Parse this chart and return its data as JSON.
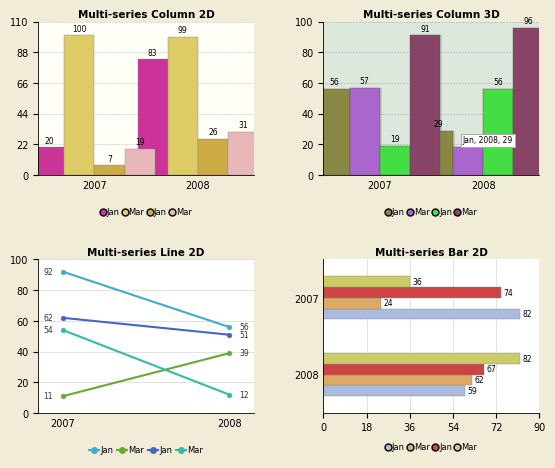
{
  "chart1": {
    "title": "Multi-series Column 2D",
    "groups": [
      "2007",
      "2008"
    ],
    "series": [
      {
        "label": "Jan",
        "color": "#cc3399",
        "values": [
          20,
          83
        ]
      },
      {
        "label": "Mar",
        "color": "#ddcc66",
        "values": [
          100,
          99
        ]
      },
      {
        "label": "Jan",
        "color": "#ccaa44",
        "values": [
          7,
          26
        ]
      },
      {
        "label": "Mar",
        "color": "#e8b8b8",
        "values": [
          19,
          31
        ]
      }
    ],
    "ylim": [
      0,
      110
    ],
    "yticks": [
      0,
      22,
      44,
      66,
      88,
      110
    ],
    "bg": "#fffff8"
  },
  "chart2": {
    "title": "Multi-series Column 3D",
    "groups": [
      "2007",
      "2008"
    ],
    "series": [
      {
        "label": "Jan",
        "color": "#888844",
        "values": [
          56,
          29
        ]
      },
      {
        "label": "Mar",
        "color": "#aa66cc",
        "values": [
          57,
          18
        ]
      },
      {
        "label": "Jan",
        "color": "#44dd44",
        "values": [
          19,
          56
        ]
      },
      {
        "label": "Mar",
        "color": "#884466",
        "values": [
          91,
          96
        ]
      }
    ],
    "ylim": [
      0,
      100
    ],
    "yticks": [
      0,
      20,
      40,
      60,
      80,
      100
    ],
    "tooltip": "Jan, 2008, 29",
    "bg": "#dde8dd"
  },
  "chart3": {
    "title": "Multi-series Line 2D",
    "xlabels": [
      "2007",
      "2008"
    ],
    "series": [
      {
        "label": "Jan",
        "color": "#44aacc",
        "values": [
          92,
          56
        ],
        "marker": "o"
      },
      {
        "label": "Mar",
        "color": "#66aa33",
        "values": [
          11,
          39
        ],
        "marker": "o"
      },
      {
        "label": "Jan",
        "color": "#4466cc",
        "values": [
          62,
          51
        ],
        "marker": "o"
      },
      {
        "label": "Mar",
        "color": "#33bbaa",
        "values": [
          54,
          12
        ],
        "marker": "o"
      }
    ],
    "ylim": [
      0,
      100
    ],
    "yticks": [
      0,
      20,
      40,
      60,
      80,
      100
    ],
    "bg": "#ffffff"
  },
  "chart4": {
    "title": "Multi-series Bar 2D",
    "groups": [
      "2007",
      "2008"
    ],
    "series": [
      {
        "label": "Jan",
        "color": "#aabbdd",
        "values": [
          82,
          59
        ]
      },
      {
        "label": "Mar",
        "color": "#ddaa66",
        "values": [
          24,
          62
        ]
      },
      {
        "label": "Jan",
        "color": "#cc4444",
        "values": [
          74,
          67
        ]
      },
      {
        "label": "Mar",
        "color": "#cccc66",
        "values": [
          36,
          82
        ]
      }
    ],
    "xlim": [
      0,
      90
    ],
    "xticks": [
      0,
      18,
      36,
      54,
      72,
      90
    ],
    "bg": "#ffffff"
  },
  "page_bg": "#f0ecd8"
}
